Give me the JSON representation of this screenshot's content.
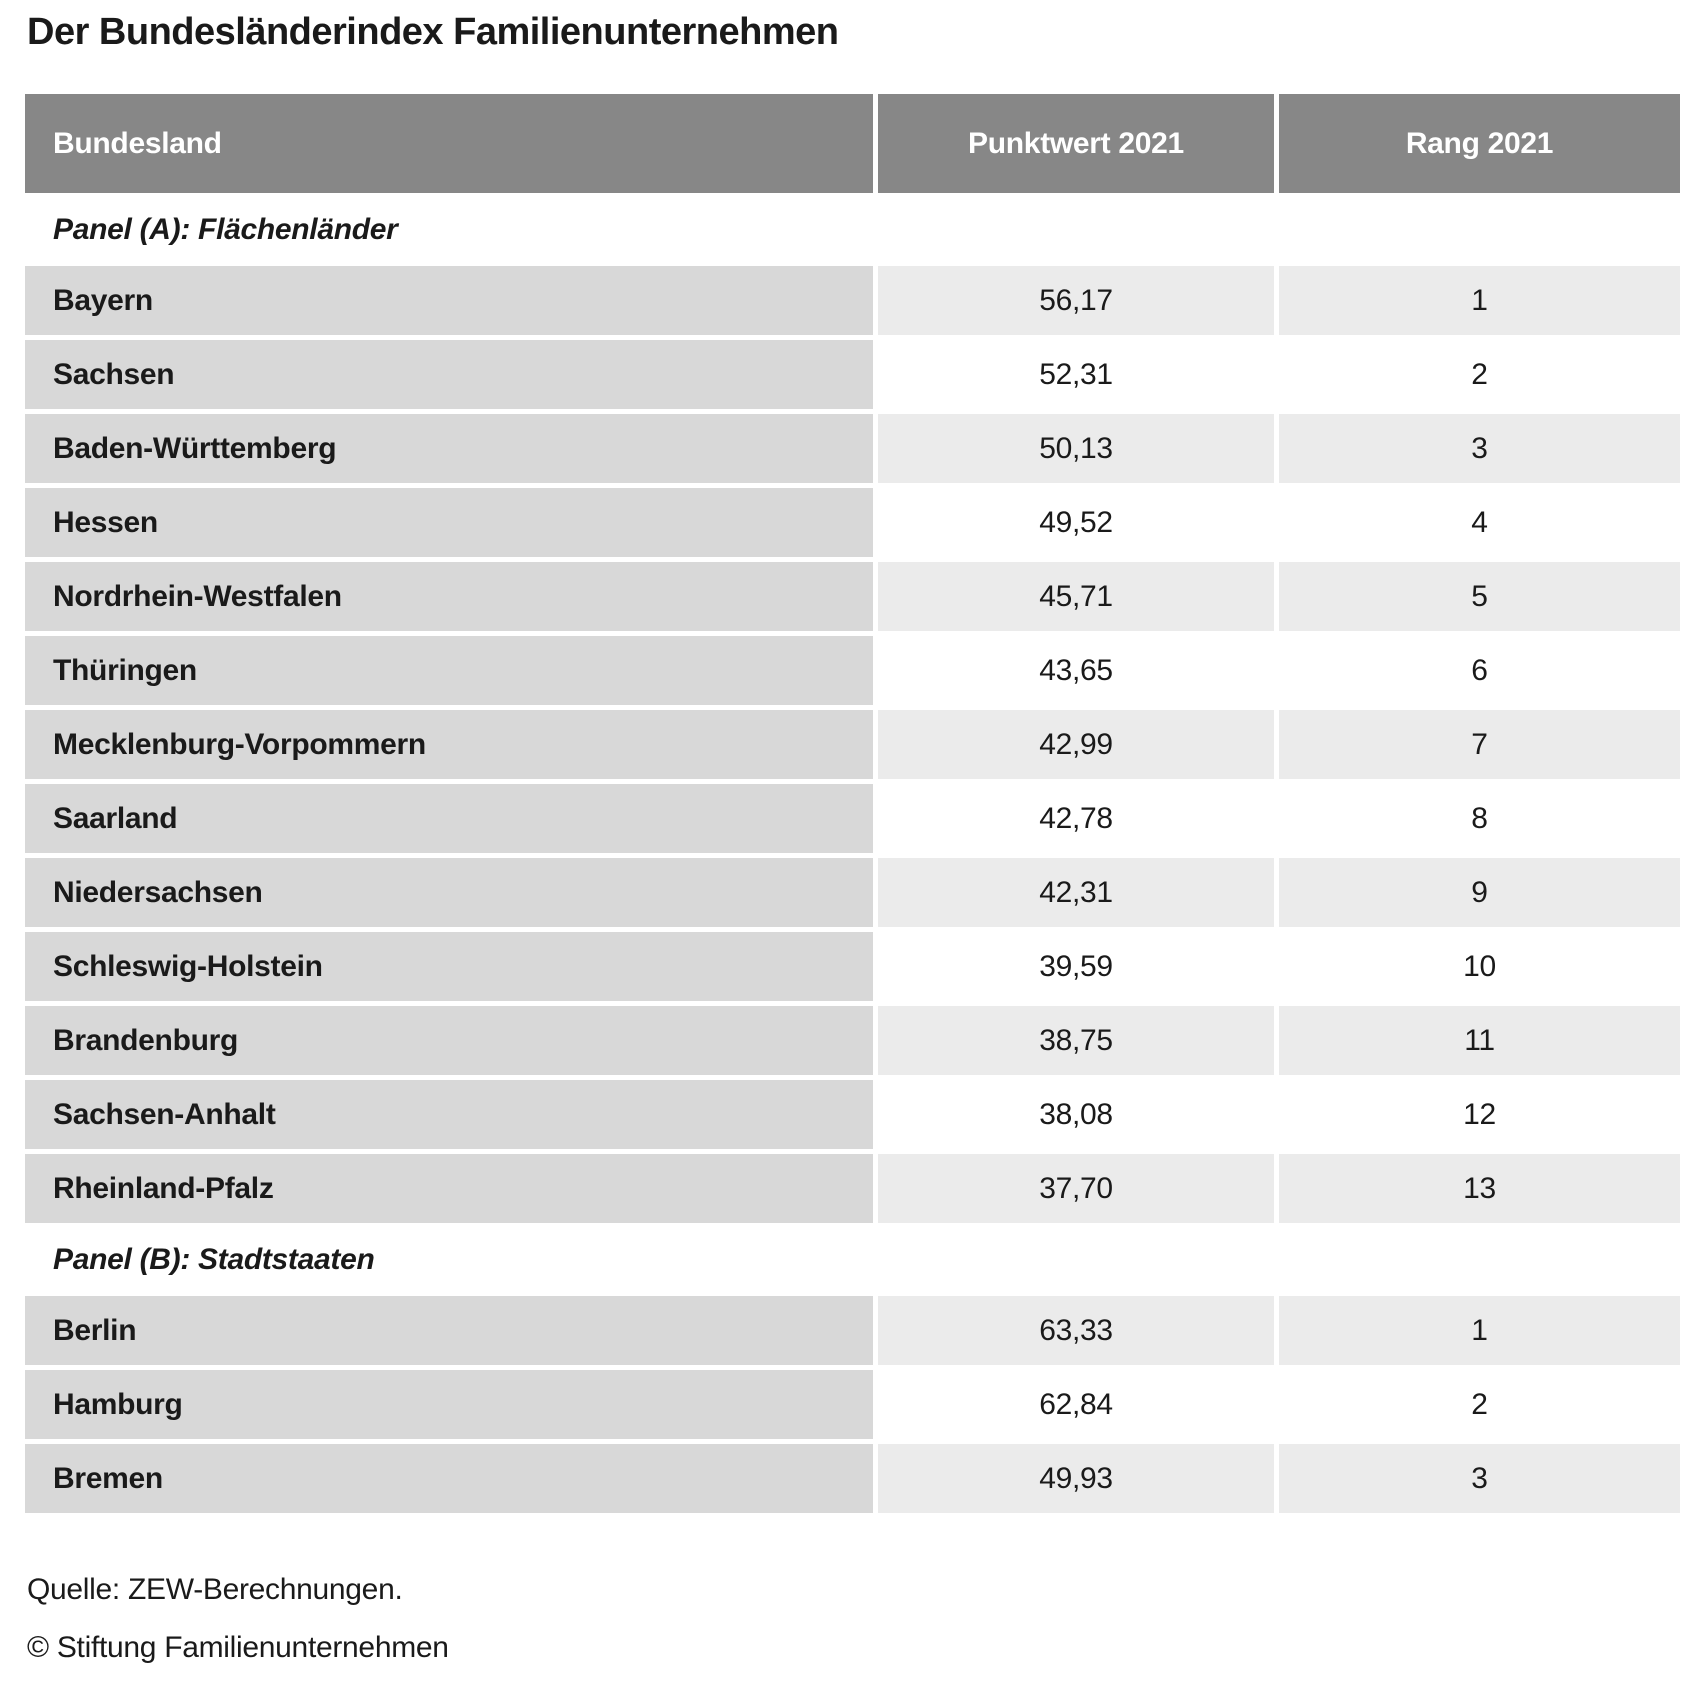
{
  "title": "Der Bundesländerindex Familienunternehmen",
  "colors": {
    "header_bg": "#878787",
    "header_text": "#ffffff",
    "state_cell_bg": "#d8d8d8",
    "zebra_value_cell_bg": "#ebebeb",
    "body_text": "#1a1a1a"
  },
  "table": {
    "header": {
      "bundesland": "Bundesland",
      "punktwert": "Punktwert 2021",
      "rang": "Rang 2021"
    },
    "panels": [
      {
        "label": "Panel (A): Flächenländer",
        "rows": [
          {
            "name": "Bayern",
            "punktwert": "56,17",
            "rang": "1"
          },
          {
            "name": "Sachsen",
            "punktwert": "52,31",
            "rang": "2"
          },
          {
            "name": "Baden-Württemberg",
            "punktwert": "50,13",
            "rang": "3"
          },
          {
            "name": "Hessen",
            "punktwert": "49,52",
            "rang": "4"
          },
          {
            "name": "Nordrhein-Westfalen",
            "punktwert": "45,71",
            "rang": "5"
          },
          {
            "name": "Thüringen",
            "punktwert": "43,65",
            "rang": "6"
          },
          {
            "name": "Mecklenburg-Vorpommern",
            "punktwert": "42,99",
            "rang": "7"
          },
          {
            "name": "Saarland",
            "punktwert": "42,78",
            "rang": "8"
          },
          {
            "name": "Niedersachsen",
            "punktwert": "42,31",
            "rang": "9"
          },
          {
            "name": "Schleswig-Holstein",
            "punktwert": "39,59",
            "rang": "10"
          },
          {
            "name": "Brandenburg",
            "punktwert": "38,75",
            "rang": "11"
          },
          {
            "name": "Sachsen-Anhalt",
            "punktwert": "38,08",
            "rang": "12"
          },
          {
            "name": "Rheinland-Pfalz",
            "punktwert": "37,70",
            "rang": "13"
          }
        ]
      },
      {
        "label": "Panel (B): Stadtstaaten",
        "rows": [
          {
            "name": "Berlin",
            "punktwert": "63,33",
            "rang": "1"
          },
          {
            "name": "Hamburg",
            "punktwert": "62,84",
            "rang": "2"
          },
          {
            "name": "Bremen",
            "punktwert": "49,93",
            "rang": "3"
          }
        ]
      }
    ]
  },
  "footer": {
    "source": "Quelle: ZEW-Berechnungen.",
    "copyright": "© Stiftung Familienunternehmen"
  },
  "chart_data": {
    "type": "table",
    "title": "Der Bundesländerindex Familienunternehmen",
    "columns": [
      "Bundesland",
      "Punktwert 2021",
      "Rang 2021"
    ],
    "sections": [
      {
        "label": "Panel (A): Flächenländer",
        "rows": [
          [
            "Bayern",
            56.17,
            1
          ],
          [
            "Sachsen",
            52.31,
            2
          ],
          [
            "Baden-Württemberg",
            50.13,
            3
          ],
          [
            "Hessen",
            49.52,
            4
          ],
          [
            "Nordrhein-Westfalen",
            45.71,
            5
          ],
          [
            "Thüringen",
            43.65,
            6
          ],
          [
            "Mecklenburg-Vorpommern",
            42.99,
            7
          ],
          [
            "Saarland",
            42.78,
            8
          ],
          [
            "Niedersachsen",
            42.31,
            9
          ],
          [
            "Schleswig-Holstein",
            39.59,
            10
          ],
          [
            "Brandenburg",
            38.75,
            11
          ],
          [
            "Sachsen-Anhalt",
            38.08,
            12
          ],
          [
            "Rheinland-Pfalz",
            37.7,
            13
          ]
        ]
      },
      {
        "label": "Panel (B): Stadtstaaten",
        "rows": [
          [
            "Berlin",
            63.33,
            1
          ],
          [
            "Hamburg",
            62.84,
            2
          ],
          [
            "Bremen",
            49.93,
            3
          ]
        ]
      }
    ],
    "source": "Quelle: ZEW-Berechnungen.",
    "copyright": "© Stiftung Familienunternehmen",
    "decimal_separator": ","
  }
}
